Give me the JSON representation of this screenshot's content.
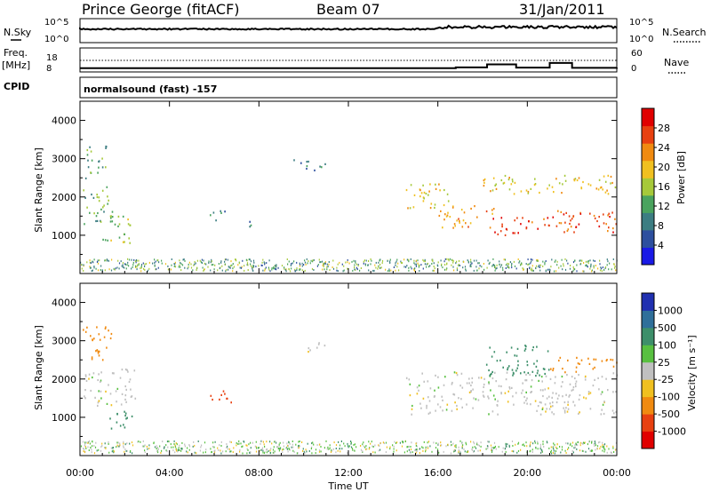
{
  "header": {
    "station": "Prince George (fitACF)",
    "beam": "Beam 07",
    "date": "31/Jan/2011"
  },
  "noise_panel": {
    "left_label": "N.Sky",
    "left_ticks": [
      "10^5",
      "10^0"
    ],
    "right_ticks": [
      "10^5",
      "10^0"
    ],
    "right_label": "N.Search"
  },
  "freq_panel": {
    "left_label_1": "Freq.",
    "left_label_2": "[MHz]",
    "left_ticks": [
      "18",
      "8"
    ],
    "right_ticks": [
      "60",
      "0"
    ],
    "right_label": "Nave"
  },
  "cpid": {
    "label": "CPID",
    "mode": "normalsound (fast) -157"
  },
  "power_panel": {
    "ylabel": "Slant Range [km]",
    "yticks": [
      "4000",
      "3000",
      "2000",
      "1000"
    ],
    "colorbar_label": "Power [dB]",
    "colorbar_ticks": [
      "28",
      "24",
      "20",
      "16",
      "12",
      "8",
      "4"
    ],
    "colors": [
      "#1a1ae6",
      "#2d4f9e",
      "#3c7d82",
      "#4aa35e",
      "#a6c93a",
      "#f0c020",
      "#f08a10",
      "#e84010",
      "#e00000"
    ]
  },
  "velocity_panel": {
    "ylabel": "Slant Range [km]",
    "yticks": [
      "4000",
      "3000",
      "2000",
      "1000"
    ],
    "colorbar_label": "Velocity [m s⁻¹]",
    "colorbar_ticks": [
      "1000",
      "500",
      "100",
      "25",
      "-25",
      "-100",
      "-500",
      "-1000"
    ],
    "colors": [
      "#2030b0",
      "#2f6f9a",
      "#3d8f6a",
      "#58c040",
      "#c0c0c0",
      "#f0c020",
      "#f08a10",
      "#e84010",
      "#e00000"
    ]
  },
  "xaxis": {
    "label": "Time UT",
    "ticks": [
      "00:00",
      "04:00",
      "08:00",
      "12:00",
      "16:00",
      "20:00",
      "00:00"
    ]
  },
  "chart_data": {
    "type": "heatmap",
    "x_unit": "hours UT",
    "xlim": [
      0,
      24
    ],
    "ylim": [
      0,
      4500
    ],
    "power_clusters": [
      {
        "t": [
          0.2,
          1.2
        ],
        "r": [
          2500,
          3400
        ],
        "dB": 10
      },
      {
        "t": [
          0.1,
          1.5
        ],
        "r": [
          1300,
          2300
        ],
        "dB": 12
      },
      {
        "t": [
          1.0,
          2.3
        ],
        "r": [
          800,
          1600
        ],
        "dB": 14
      },
      {
        "t": [
          5.8,
          6.7
        ],
        "r": [
          1400,
          1700
        ],
        "dB": 8
      },
      {
        "t": [
          7.5,
          8.2
        ],
        "r": [
          1200,
          1400
        ],
        "dB": 8
      },
      {
        "t": [
          9.5,
          11.0
        ],
        "r": [
          2700,
          3000
        ],
        "dB": 8
      },
      {
        "t": [
          14.5,
          16.5
        ],
        "r": [
          1700,
          2400
        ],
        "dB": 18
      },
      {
        "t": [
          16.0,
          18.5
        ],
        "r": [
          1200,
          1800
        ],
        "dB": 22
      },
      {
        "t": [
          18.3,
          20.0
        ],
        "r": [
          1000,
          1500
        ],
        "dB": 28
      },
      {
        "t": [
          18.0,
          24.0
        ],
        "r": [
          2100,
          2600
        ],
        "dB": 18
      },
      {
        "t": [
          20.0,
          24.0
        ],
        "r": [
          1100,
          1700
        ],
        "dB": 26
      }
    ],
    "velocity_clusters": [
      {
        "t": [
          0.1,
          1.4
        ],
        "r": [
          2500,
          3400
        ],
        "v": -300
      },
      {
        "t": [
          0.1,
          2.5
        ],
        "r": [
          1300,
          2300
        ],
        "v": 0
      },
      {
        "t": [
          1.0,
          2.3
        ],
        "r": [
          700,
          1200
        ],
        "v": 150
      },
      {
        "t": [
          5.8,
          6.8
        ],
        "r": [
          1400,
          1800
        ],
        "v": -600
      },
      {
        "t": [
          10.0,
          11.0
        ],
        "r": [
          2700,
          3000
        ],
        "v": 0
      },
      {
        "t": [
          14.5,
          24.0
        ],
        "r": [
          1100,
          2200
        ],
        "v": 0
      },
      {
        "t": [
          18.0,
          21.0
        ],
        "r": [
          2100,
          2900
        ],
        "v": 300
      },
      {
        "t": [
          21.0,
          24.0
        ],
        "r": [
          2200,
          2600
        ],
        "v": -200
      }
    ],
    "freq_MHz": [
      [
        0,
        10.5
      ],
      [
        16.0,
        10.5
      ],
      [
        16.8,
        11.2
      ],
      [
        18.2,
        13.8
      ],
      [
        19.5,
        11.0
      ],
      [
        21.0,
        15.0
      ],
      [
        22.0,
        10.8
      ],
      [
        24.0,
        11.0
      ]
    ]
  }
}
